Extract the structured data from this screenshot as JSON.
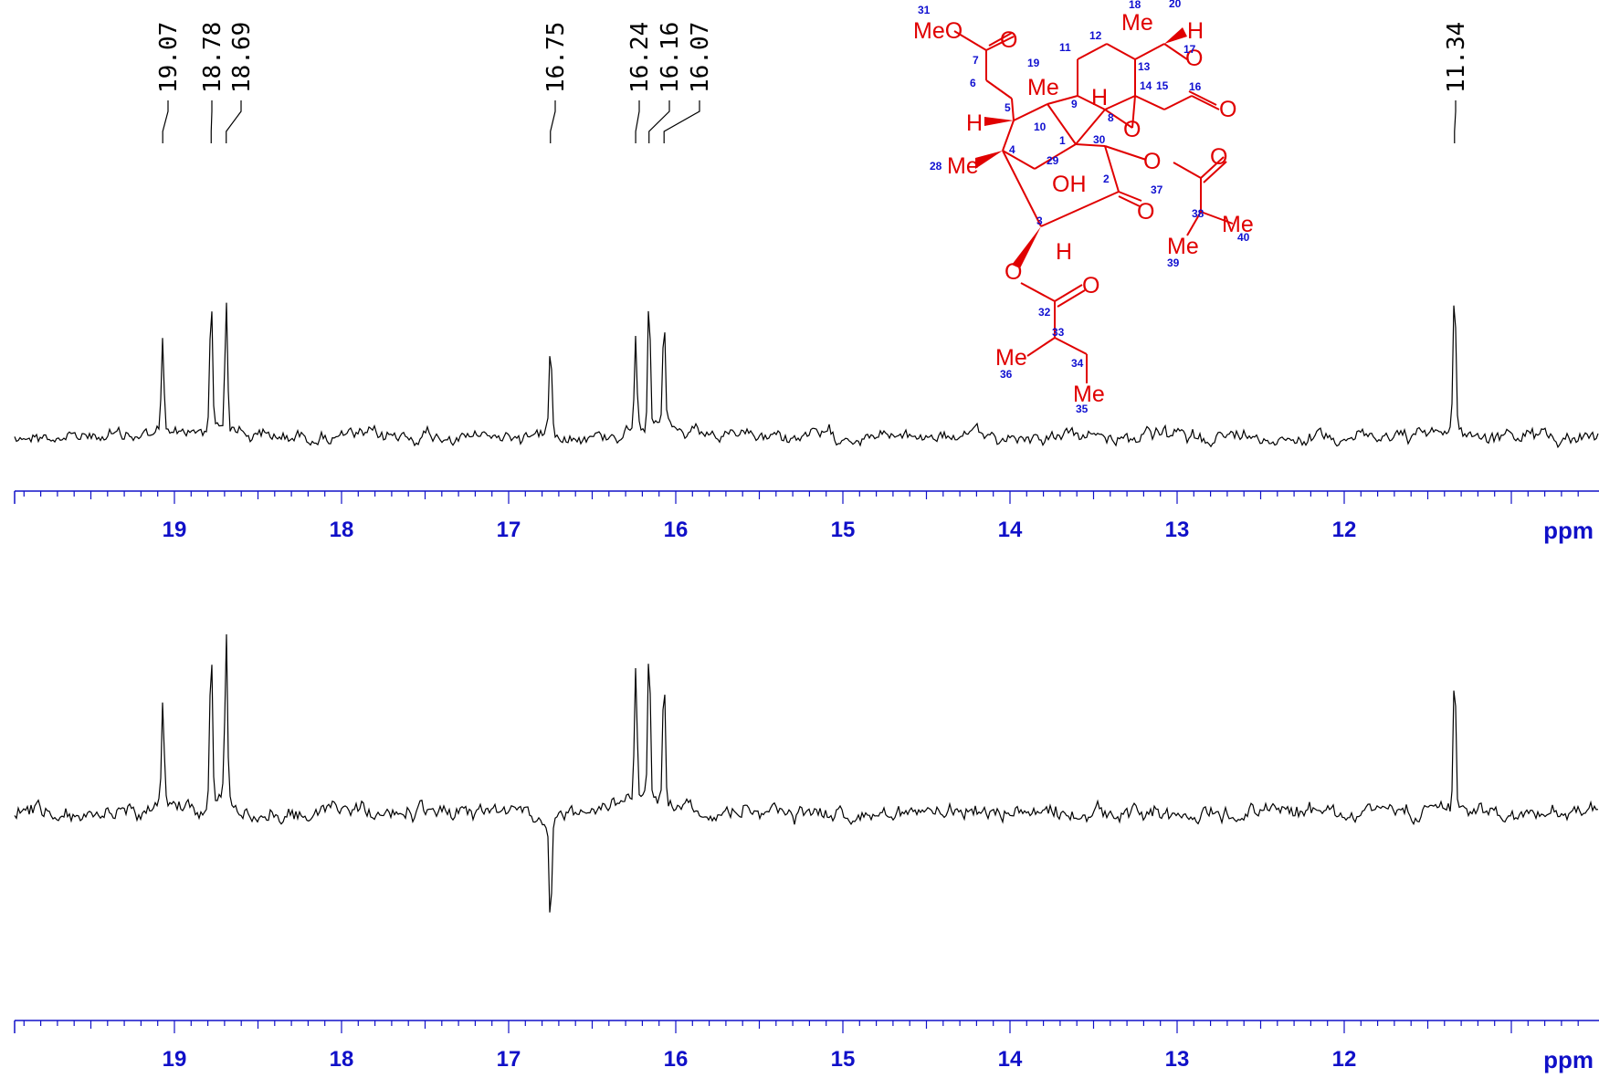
{
  "chart_data": [
    {
      "type": "line",
      "name_hint": "upper spectrum",
      "xlabel": "ppm",
      "xlim": [
        20.0,
        10.5
      ],
      "ticks": [
        "19",
        "18",
        "17",
        "16",
        "15",
        "14",
        "13",
        "12"
      ],
      "peak_labels": [
        "19.07",
        "18.78",
        "18.69",
        "16.75",
        "16.24",
        "16.16",
        "16.07",
        "11.34"
      ],
      "peaks": [
        {
          "ppm": 19.07,
          "intensity": 0.52
        },
        {
          "ppm": 18.78,
          "intensity": 0.8
        },
        {
          "ppm": 18.69,
          "intensity": 0.77
        },
        {
          "ppm": 16.75,
          "intensity": 0.55
        },
        {
          "ppm": 16.24,
          "intensity": 0.58
        },
        {
          "ppm": 16.16,
          "intensity": 0.83
        },
        {
          "ppm": 16.07,
          "intensity": 0.62
        },
        {
          "ppm": 11.34,
          "intensity": 0.86
        }
      ]
    },
    {
      "type": "line",
      "name_hint": "lower spectrum",
      "xlabel": "ppm",
      "xlim": [
        20.0,
        10.5
      ],
      "ticks": [
        "19",
        "18",
        "17",
        "16",
        "15",
        "14",
        "13",
        "12"
      ],
      "peaks": [
        {
          "ppm": 19.07,
          "intensity": 0.58
        },
        {
          "ppm": 18.78,
          "intensity": 0.82
        },
        {
          "ppm": 18.69,
          "intensity": 0.9
        },
        {
          "ppm": 16.75,
          "intensity": -0.58
        },
        {
          "ppm": 16.24,
          "intensity": 0.7
        },
        {
          "ppm": 16.16,
          "intensity": 0.85
        },
        {
          "ppm": 16.07,
          "intensity": 0.73
        },
        {
          "ppm": 11.34,
          "intensity": 0.77
        }
      ]
    }
  ],
  "structure": {
    "atoms": [
      "MeO",
      "O",
      "Me",
      "H",
      "O",
      "O",
      "Me",
      "H",
      "O",
      "O",
      "O",
      "H",
      "Me",
      "OH",
      "O",
      "Me",
      "Me",
      "O",
      "H",
      "O",
      "Me",
      "Me"
    ],
    "numbers": [
      "31",
      "7",
      "6",
      "5",
      "10",
      "19",
      "9",
      "11",
      "12",
      "18",
      "20",
      "13",
      "17",
      "14",
      "8",
      "15",
      "16",
      "1",
      "30",
      "2",
      "4",
      "28",
      "29",
      "3",
      "37",
      "38",
      "40",
      "39",
      "32",
      "33",
      "34",
      "36",
      "35"
    ]
  },
  "colors": {
    "spectrum": "#000000",
    "axis": "#1010c8",
    "structure": "#e00000",
    "atom_numbers": "#1010d0"
  }
}
